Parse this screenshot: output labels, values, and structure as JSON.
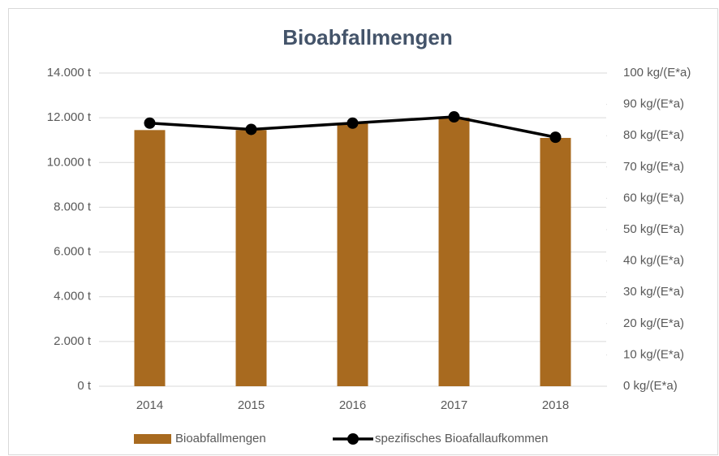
{
  "chart_data": {
    "type": "combo",
    "title": "Bioabfallmengen",
    "categories": [
      "2014",
      "2015",
      "2016",
      "2017",
      "2018"
    ],
    "series": [
      {
        "name": "Bioabfallmengen",
        "type": "bar",
        "color": "#a86a1f",
        "values": [
          11450,
          11450,
          11750,
          12000,
          11100
        ]
      },
      {
        "name": "spezifisches Bioafallaufkommen",
        "type": "line",
        "axis": "y2",
        "color": "#000000",
        "values": [
          84,
          82,
          84,
          86,
          79.5
        ]
      }
    ],
    "ylim": [
      0,
      14000
    ],
    "yticks": [
      {
        "value": 0,
        "label": "0 t"
      },
      {
        "value": 2000,
        "label": "2.000 t"
      },
      {
        "value": 4000,
        "label": "4.000 t"
      },
      {
        "value": 6000,
        "label": "6.000 t"
      },
      {
        "value": 8000,
        "label": "8.000 t"
      },
      {
        "value": 10000,
        "label": "10.000 t"
      },
      {
        "value": 12000,
        "label": "12.000 t"
      },
      {
        "value": 14000,
        "label": "14.000 t"
      }
    ],
    "y2lim": [
      0,
      100
    ],
    "y2ticks": [
      {
        "value": 0,
        "label": "0 kg/(E*a)"
      },
      {
        "value": 10,
        "label": "10 kg/(E*a)"
      },
      {
        "value": 20,
        "label": "20 kg/(E*a)"
      },
      {
        "value": 30,
        "label": "30 kg/(E*a)"
      },
      {
        "value": 40,
        "label": "40 kg/(E*a)"
      },
      {
        "value": 50,
        "label": "50 kg/(E*a)"
      },
      {
        "value": 60,
        "label": "60 kg/(E*a)"
      },
      {
        "value": 70,
        "label": "70 kg/(E*a)"
      },
      {
        "value": 80,
        "label": "80 kg/(E*a)"
      },
      {
        "value": 90,
        "label": "90 kg/(E*a)"
      },
      {
        "value": 100,
        "label": "100 kg/(E*a)"
      }
    ],
    "grid": true,
    "legend": "bottom"
  }
}
